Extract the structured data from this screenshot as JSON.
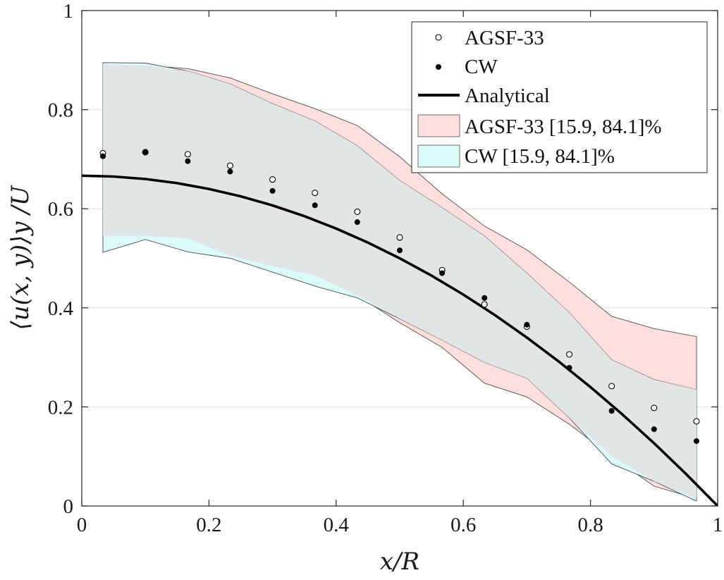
{
  "chart_data": {
    "type": "line",
    "xlabel": "x/R",
    "ylabel": "⟨u(x, y)⟩y /U",
    "xlim": [
      0,
      1
    ],
    "ylim": [
      0,
      1
    ],
    "xticks": [
      "0",
      "0.2",
      "0.4",
      "0.6",
      "0.8",
      "1"
    ],
    "yticks": [
      "0",
      "0.2",
      "0.4",
      "0.6",
      "0.8",
      "1"
    ],
    "xtick_values": [
      0,
      0.2,
      0.4,
      0.6,
      0.8,
      1
    ],
    "ytick_values": [
      0,
      0.2,
      0.4,
      0.6,
      0.8,
      1
    ],
    "grid": "horizontal",
    "legend_position": "top-right",
    "x": [
      0.0333,
      0.1,
      0.1667,
      0.2333,
      0.3,
      0.3667,
      0.4333,
      0.5,
      0.5667,
      0.6333,
      0.7,
      0.7667,
      0.8333,
      0.9,
      0.9667
    ],
    "series": [
      {
        "name": "AGSF-33",
        "kind": "scatter",
        "marker": "open-circle",
        "values": [
          0.712,
          0.714,
          0.71,
          0.687,
          0.659,
          0.632,
          0.594,
          0.542,
          0.476,
          0.407,
          0.362,
          0.306,
          0.242,
          0.198,
          0.171
        ]
      },
      {
        "name": "CW",
        "kind": "scatter",
        "marker": "filled-circle",
        "values": [
          0.706,
          0.715,
          0.696,
          0.675,
          0.636,
          0.607,
          0.573,
          0.516,
          0.47,
          0.42,
          0.366,
          0.279,
          0.192,
          0.155,
          0.131
        ]
      },
      {
        "name": "Analytical",
        "kind": "line",
        "formula": "(2/3)(1 - x^2)",
        "x": [
          0,
          0.05,
          0.1,
          0.15,
          0.2,
          0.25,
          0.3,
          0.35,
          0.4,
          0.45,
          0.5,
          0.55,
          0.6,
          0.65,
          0.7,
          0.75,
          0.8,
          0.85,
          0.9,
          0.95,
          1.0
        ],
        "values": [
          0.6667,
          0.665,
          0.66,
          0.6517,
          0.64,
          0.625,
          0.6067,
          0.585,
          0.56,
          0.5317,
          0.5,
          0.465,
          0.4267,
          0.385,
          0.34,
          0.2917,
          0.24,
          0.185,
          0.1267,
          0.065,
          0.0
        ]
      }
    ],
    "bands": [
      {
        "name": "AGSF-33 [15.9, 84.1]%",
        "color": "#ffdede",
        "upper": [
          0.892,
          0.889,
          0.883,
          0.864,
          0.832,
          0.802,
          0.768,
          0.705,
          0.63,
          0.565,
          0.517,
          0.452,
          0.383,
          0.358,
          0.342
        ],
        "lower": [
          0.545,
          0.545,
          0.54,
          0.505,
          0.484,
          0.465,
          0.425,
          0.37,
          0.32,
          0.248,
          0.22,
          0.165,
          0.1,
          0.04,
          0.015
        ]
      },
      {
        "name": "CW [15.9, 84.1]%",
        "color": "#dcfbfb",
        "upper": [
          0.895,
          0.894,
          0.878,
          0.852,
          0.812,
          0.777,
          0.727,
          0.657,
          0.602,
          0.545,
          0.47,
          0.39,
          0.295,
          0.255,
          0.235
        ],
        "lower": [
          0.512,
          0.538,
          0.513,
          0.5,
          0.472,
          0.444,
          0.42,
          0.378,
          0.335,
          0.29,
          0.258,
          0.178,
          0.085,
          0.05,
          0.01
        ]
      }
    ],
    "legend_entries": [
      "AGSF-33",
      "CW",
      "Analytical",
      "AGSF-33 [15.9, 84.1]%",
      "CW [15.9, 84.1]%"
    ]
  },
  "colors": {
    "axis": "#262626",
    "grid": "#dedede",
    "band_overlap": "#e2e5e5",
    "band_edge": "#4d4d4d",
    "marker": "#000000",
    "analytical_line": "#000000"
  }
}
